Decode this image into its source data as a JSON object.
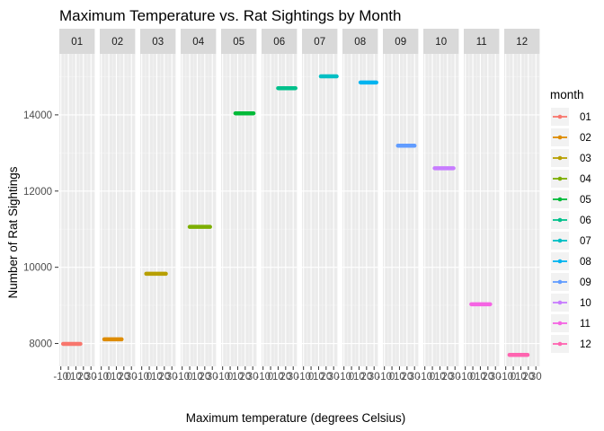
{
  "chart_data": {
    "type": "line",
    "title": "Maximum Temperature vs. Rat Sightings by Month",
    "xlabel": "Maximum temperature (degrees Celsius)",
    "ylabel": "Number of Rat Sightings",
    "facet_by": "month",
    "facets": [
      "01",
      "02",
      "03",
      "04",
      "05",
      "06",
      "07",
      "08",
      "09",
      "10",
      "11",
      "12"
    ],
    "x_tick_labels": [
      "-10",
      "0",
      "10",
      "20",
      "30"
    ],
    "xlim": [
      -12,
      35
    ],
    "y_ticks": [
      8000,
      10000,
      12000,
      14000
    ],
    "ylim": [
      7400,
      15600
    ],
    "grid": true,
    "legend": {
      "title": "month",
      "position": "right"
    },
    "series": [
      {
        "name": "01",
        "color": "#F8766D",
        "y": 7990,
        "x": [
          -7,
          16
        ]
      },
      {
        "name": "02",
        "color": "#DE8C00",
        "y": 8110,
        "x": [
          -6,
          17
        ]
      },
      {
        "name": "03",
        "color": "#B79F00",
        "y": 9830,
        "x": [
          -4,
          22
        ]
      },
      {
        "name": "04",
        "color": "#7CAE00",
        "y": 11060,
        "x": [
          0,
          27
        ]
      },
      {
        "name": "05",
        "color": "#00BA38",
        "y": 14040,
        "x": [
          7,
          31
        ]
      },
      {
        "name": "06",
        "color": "#00C08B",
        "y": 14700,
        "x": [
          10,
          33
        ]
      },
      {
        "name": "07",
        "color": "#00BFC4",
        "y": 15010,
        "x": [
          13,
          34
        ]
      },
      {
        "name": "08",
        "color": "#00B4F0",
        "y": 14850,
        "x": [
          12,
          33
        ]
      },
      {
        "name": "09",
        "color": "#619CFF",
        "y": 13190,
        "x": [
          8,
          30
        ]
      },
      {
        "name": "10",
        "color": "#C77CFF",
        "y": 12600,
        "x": [
          3,
          28
        ]
      },
      {
        "name": "11",
        "color": "#F564E3",
        "y": 9030,
        "x": [
          -2,
          23
        ]
      },
      {
        "name": "12",
        "color": "#FF64B0",
        "y": 7700,
        "x": [
          -5,
          19
        ]
      }
    ]
  }
}
